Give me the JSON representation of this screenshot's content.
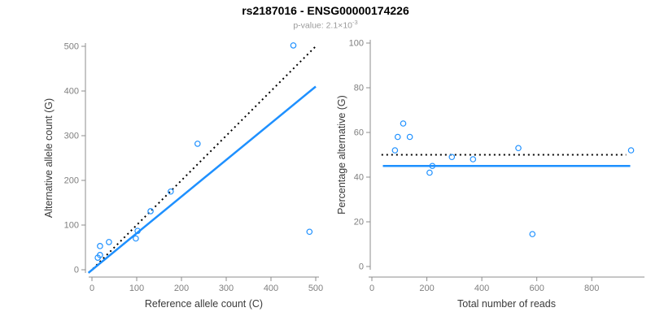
{
  "figure": {
    "title": "rs2187016 - ENSG00000174226",
    "subtitle_prefix": "p-value: 2.1×10",
    "subtitle_exponent": "-3"
  },
  "colors": {
    "points": "#1E90FF",
    "fit_line": "#1E90FF",
    "reference_line": "#000000",
    "axis": "#8c8c8c",
    "tick_text": "#7f7f7f",
    "axis_title": "#3a3a3a",
    "subtitle": "#9a9a9a"
  },
  "chart_data": [
    {
      "type": "scatter",
      "panel": "left",
      "xlabel": "Reference allele count (C)",
      "ylabel": "Alternative allele count (G)",
      "xlim": [
        0,
        500
      ],
      "ylim": [
        0,
        500
      ],
      "xticks": [
        0,
        100,
        200,
        300,
        400,
        500
      ],
      "yticks": [
        0,
        100,
        200,
        300,
        400,
        500
      ],
      "grid": false,
      "legend": "none",
      "points": [
        [
          13,
          27
        ],
        [
          18,
          33
        ],
        [
          18,
          53
        ],
        [
          38,
          62
        ],
        [
          98,
          70
        ],
        [
          102,
          87
        ],
        [
          131,
          131
        ],
        [
          176,
          175
        ],
        [
          236,
          282
        ],
        [
          450,
          502
        ],
        [
          486,
          85
        ]
      ],
      "lines": [
        {
          "name": "identity-line",
          "style": "dotted",
          "color": "#000000",
          "x": [
            2,
            503
          ],
          "y": [
            2,
            503
          ]
        },
        {
          "name": "fit-line",
          "style": "solid",
          "color": "#1E90FF",
          "x": [
            -8,
            500
          ],
          "y": [
            -7,
            410
          ]
        }
      ]
    },
    {
      "type": "scatter",
      "panel": "right",
      "xlabel": "Total number of reads",
      "ylabel": "Percentage alternative (G)",
      "xlim": [
        0,
        980
      ],
      "ylim": [
        0,
        100
      ],
      "xticks": [
        0,
        200,
        400,
        600,
        800
      ],
      "yticks": [
        0,
        20,
        40,
        60,
        80,
        100
      ],
      "grid": false,
      "legend": "none",
      "points": [
        [
          84,
          52
        ],
        [
          94,
          58
        ],
        [
          114,
          64
        ],
        [
          138,
          58
        ],
        [
          210,
          42
        ],
        [
          220,
          45
        ],
        [
          291,
          49
        ],
        [
          368,
          48
        ],
        [
          533,
          53
        ],
        [
          584,
          14.5
        ],
        [
          943,
          52
        ]
      ],
      "lines": [
        {
          "name": "expected-50pct-line",
          "style": "dotted",
          "color": "#000000",
          "x": [
            35,
            925
          ],
          "y": [
            50,
            50
          ]
        },
        {
          "name": "observed-45pct-line",
          "style": "solid",
          "color": "#1E90FF",
          "x": [
            40,
            940
          ],
          "y": [
            45,
            45
          ]
        }
      ]
    }
  ]
}
